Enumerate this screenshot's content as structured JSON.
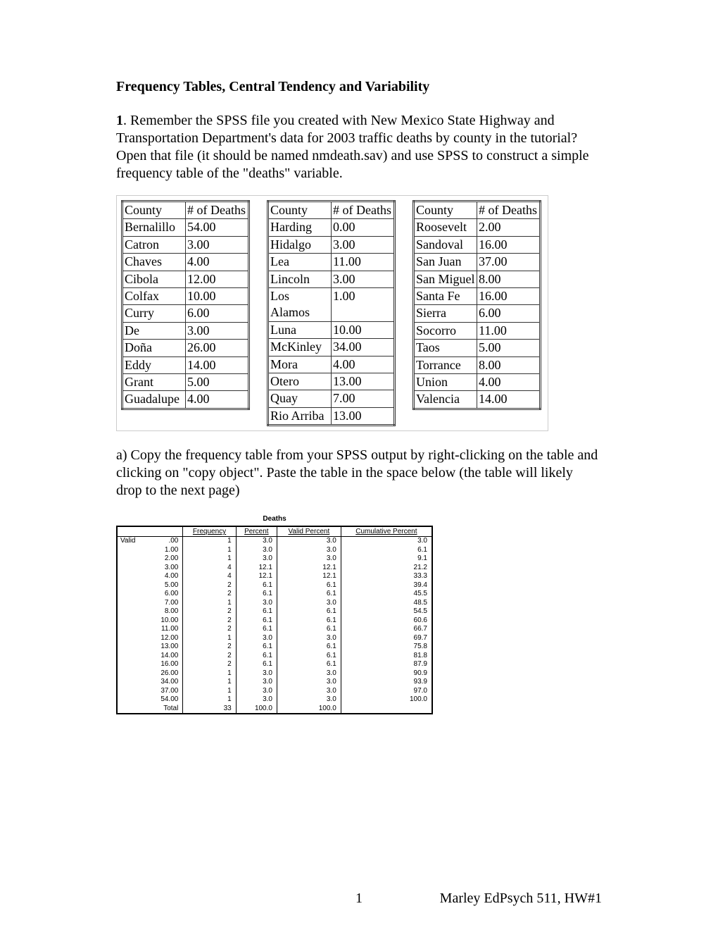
{
  "title": "Frequency Tables, Central Tendency and Variability",
  "intro_bold": "1",
  "intro_text": ". Remember the SPSS file you created with New Mexico State Highway and Transportation Department's data for 2003 traffic deaths by county in the tutorial? Open that file (it should be named nmdeath.sav) and use SPSS to construct a simple frequency table of the \"deaths\" variable.",
  "county_header_county": "County",
  "county_header_deaths": "# of Deaths",
  "table1": [
    {
      "county": "Bernalillo",
      "deaths": "54.00"
    },
    {
      "county": "Catron",
      "deaths": "3.00"
    },
    {
      "county": "Chaves",
      "deaths": "4.00"
    },
    {
      "county": "Cibola",
      "deaths": "12.00"
    },
    {
      "county": "Colfax",
      "deaths": "10.00"
    },
    {
      "county": "Curry",
      "deaths": "6.00"
    },
    {
      "county": "De",
      "deaths": "3.00"
    },
    {
      "county": "Doña",
      "deaths": "26.00"
    },
    {
      "county": "Eddy",
      "deaths": "14.00"
    },
    {
      "county": "Grant",
      "deaths": "5.00"
    },
    {
      "county": "Guadalupe",
      "deaths": "4.00"
    }
  ],
  "table2": [
    {
      "county": "Harding",
      "deaths": "0.00"
    },
    {
      "county": "Hidalgo",
      "deaths": "3.00"
    },
    {
      "county": "Lea",
      "deaths": "11.00"
    },
    {
      "county": "Lincoln",
      "deaths": "3.00"
    },
    {
      "county": "Los Alamos",
      "deaths": "1.00"
    },
    {
      "county": "Luna",
      "deaths": "10.00"
    },
    {
      "county": "McKinley",
      "deaths": "34.00"
    },
    {
      "county": "Mora",
      "deaths": "4.00"
    },
    {
      "county": "Otero",
      "deaths": "13.00"
    },
    {
      "county": "Quay",
      "deaths": "7.00"
    },
    {
      "county": "Rio Arriba",
      "deaths": "13.00"
    }
  ],
  "table3": [
    {
      "county": "Roosevelt",
      "deaths": "2.00"
    },
    {
      "county": "Sandoval",
      "deaths": "16.00"
    },
    {
      "county": "San Juan",
      "deaths": "37.00"
    },
    {
      "county": "San Miguel",
      "deaths": "8.00"
    },
    {
      "county": "Santa Fe",
      "deaths": "16.00"
    },
    {
      "county": "Sierra",
      "deaths": "6.00"
    },
    {
      "county": "Socorro",
      "deaths": "11.00"
    },
    {
      "county": "Taos",
      "deaths": "5.00"
    },
    {
      "county": "Torrance",
      "deaths": "8.00"
    },
    {
      "county": "Union",
      "deaths": "4.00"
    },
    {
      "county": "Valencia",
      "deaths": "14.00"
    }
  ],
  "section_a": "a) Copy the frequency table from your SPSS output by right-clicking on the table and clicking on \"copy object\". Paste the table in the space below (the table will likely drop to the next page)",
  "spss": {
    "title": "Deaths",
    "headers": {
      "frequency": "Frequency",
      "percent": "Percent",
      "valid_percent": "Valid Percent",
      "cumulative": "Cumulative Percent"
    },
    "valid_label": "Valid",
    "total_label": "Total",
    "rows": [
      {
        "v": ".00",
        "f": "1",
        "p": "3.0",
        "vp": "3.0",
        "cp": "3.0"
      },
      {
        "v": "1.00",
        "f": "1",
        "p": "3.0",
        "vp": "3.0",
        "cp": "6.1"
      },
      {
        "v": "2.00",
        "f": "1",
        "p": "3.0",
        "vp": "3.0",
        "cp": "9.1"
      },
      {
        "v": "3.00",
        "f": "4",
        "p": "12.1",
        "vp": "12.1",
        "cp": "21.2"
      },
      {
        "v": "4.00",
        "f": "4",
        "p": "12.1",
        "vp": "12.1",
        "cp": "33.3"
      },
      {
        "v": "5.00",
        "f": "2",
        "p": "6.1",
        "vp": "6.1",
        "cp": "39.4"
      },
      {
        "v": "6.00",
        "f": "2",
        "p": "6.1",
        "vp": "6.1",
        "cp": "45.5"
      },
      {
        "v": "7.00",
        "f": "1",
        "p": "3.0",
        "vp": "3.0",
        "cp": "48.5"
      },
      {
        "v": "8.00",
        "f": "2",
        "p": "6.1",
        "vp": "6.1",
        "cp": "54.5"
      },
      {
        "v": "10.00",
        "f": "2",
        "p": "6.1",
        "vp": "6.1",
        "cp": "60.6"
      },
      {
        "v": "11.00",
        "f": "2",
        "p": "6.1",
        "vp": "6.1",
        "cp": "66.7"
      },
      {
        "v": "12.00",
        "f": "1",
        "p": "3.0",
        "vp": "3.0",
        "cp": "69.7"
      },
      {
        "v": "13.00",
        "f": "2",
        "p": "6.1",
        "vp": "6.1",
        "cp": "75.8"
      },
      {
        "v": "14.00",
        "f": "2",
        "p": "6.1",
        "vp": "6.1",
        "cp": "81.8"
      },
      {
        "v": "16.00",
        "f": "2",
        "p": "6.1",
        "vp": "6.1",
        "cp": "87.9"
      },
      {
        "v": "26.00",
        "f": "1",
        "p": "3.0",
        "vp": "3.0",
        "cp": "90.9"
      },
      {
        "v": "34.00",
        "f": "1",
        "p": "3.0",
        "vp": "3.0",
        "cp": "93.9"
      },
      {
        "v": "37.00",
        "f": "1",
        "p": "3.0",
        "vp": "3.0",
        "cp": "97.0"
      },
      {
        "v": "54.00",
        "f": "1",
        "p": "3.0",
        "vp": "3.0",
        "cp": "100.0"
      }
    ],
    "total": {
      "f": "33",
      "p": "100.0",
      "vp": "100.0",
      "cp": ""
    }
  },
  "footer": {
    "page": "1",
    "right": "Marley EdPsych 511, HW#1"
  }
}
